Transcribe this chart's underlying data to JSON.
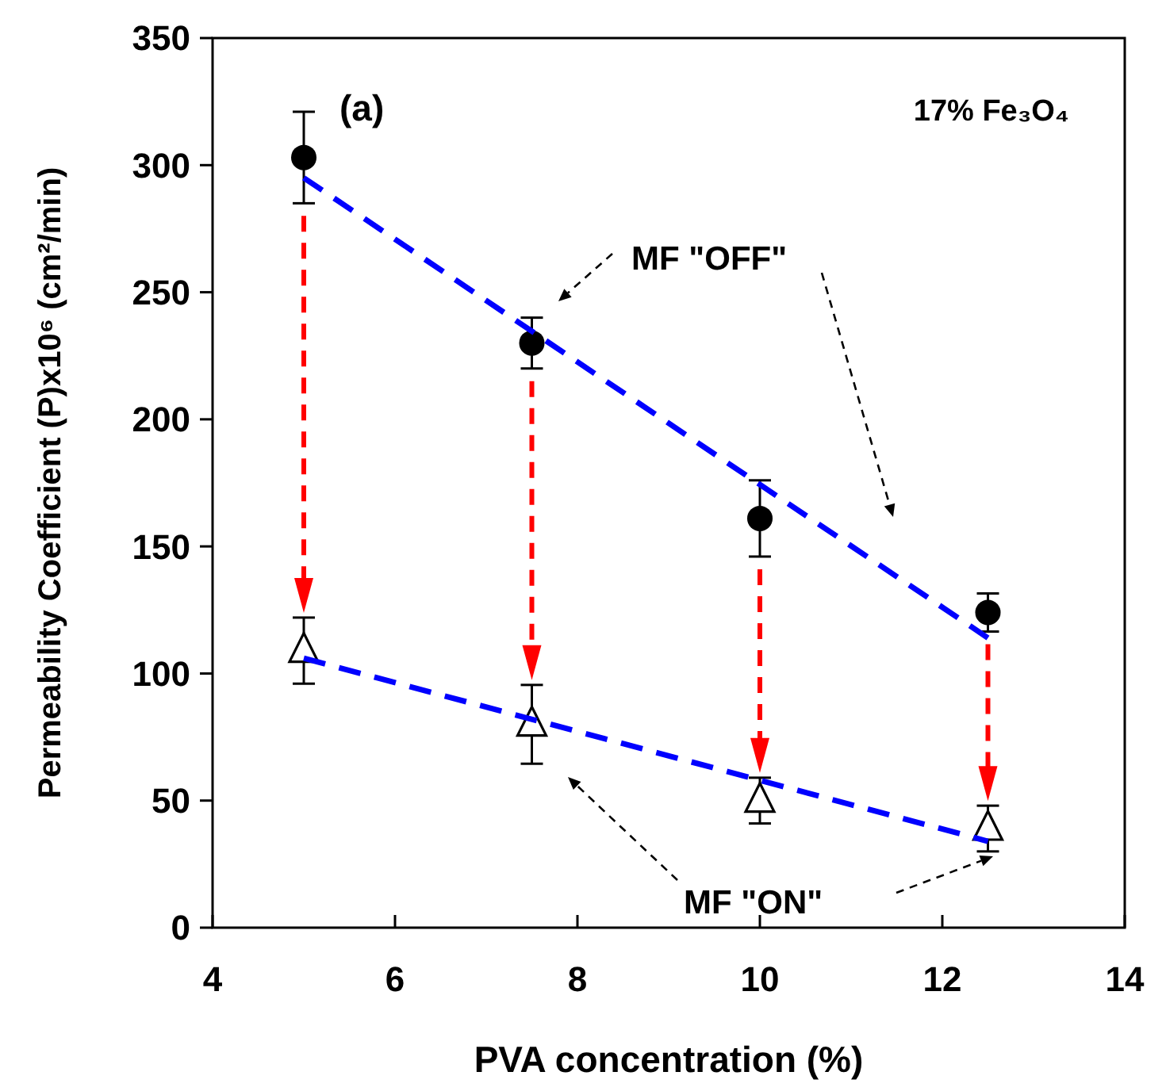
{
  "chart_data": {
    "type": "scatter",
    "xlabel": "PVA concentration (%)",
    "ylabel": "Permeability Coefficient (P)x10⁶ (cm²/min)",
    "xlim": [
      4,
      14
    ],
    "xticks": [
      4,
      6,
      8,
      10,
      12,
      14
    ],
    "ylim": [
      0,
      350
    ],
    "yticks": [
      0,
      50,
      100,
      150,
      200,
      250,
      300,
      350
    ],
    "grid": false,
    "annotations": [
      "(a)",
      "17% Fe₃O₄",
      "MF \"OFF\"",
      "MF \"ON\""
    ],
    "series": [
      {
        "marker": "circle",
        "color": "#000000",
        "x": [
          5,
          7.5,
          10,
          12.5
        ],
        "values": [
          303,
          230,
          161,
          124
        ],
        "errors": [
          18,
          10,
          15,
          7.5
        ]
      },
      {
        "marker": "triangle",
        "color": "#000000",
        "x": [
          5,
          7.5,
          10,
          12.5
        ],
        "values": [
          109,
          80,
          50,
          39
        ],
        "errors": [
          13,
          15.5,
          9,
          9
        ]
      },
      {
        "type": "line",
        "line_style": "dashed",
        "color": "#0000ff",
        "x": [
          5,
          12.5
        ],
        "values": [
          295,
          114
        ]
      },
      {
        "type": "line",
        "line_style": "dashed",
        "color": "#0000ff",
        "x": [
          5,
          12.5
        ],
        "values": [
          106,
          34
        ]
      }
    ]
  }
}
